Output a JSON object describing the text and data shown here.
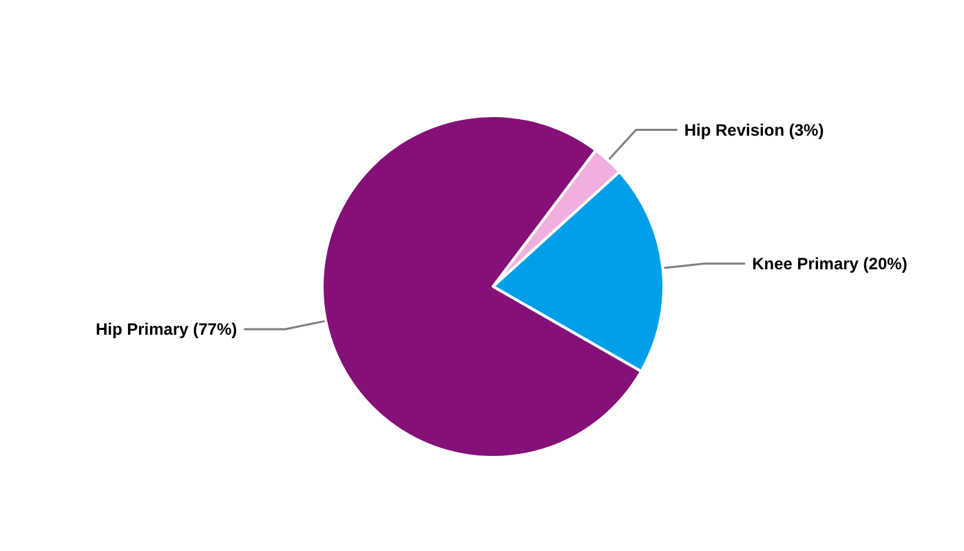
{
  "chart_data": {
    "type": "pie",
    "categories": [
      "Hip Revision (3%)",
      "Knee Primary (20%)",
      "Hip Primary (77%)"
    ],
    "values": [
      3,
      20,
      77
    ],
    "colors": [
      "#f0afdc",
      "#009fe8",
      "#841078"
    ],
    "legend": false
  }
}
